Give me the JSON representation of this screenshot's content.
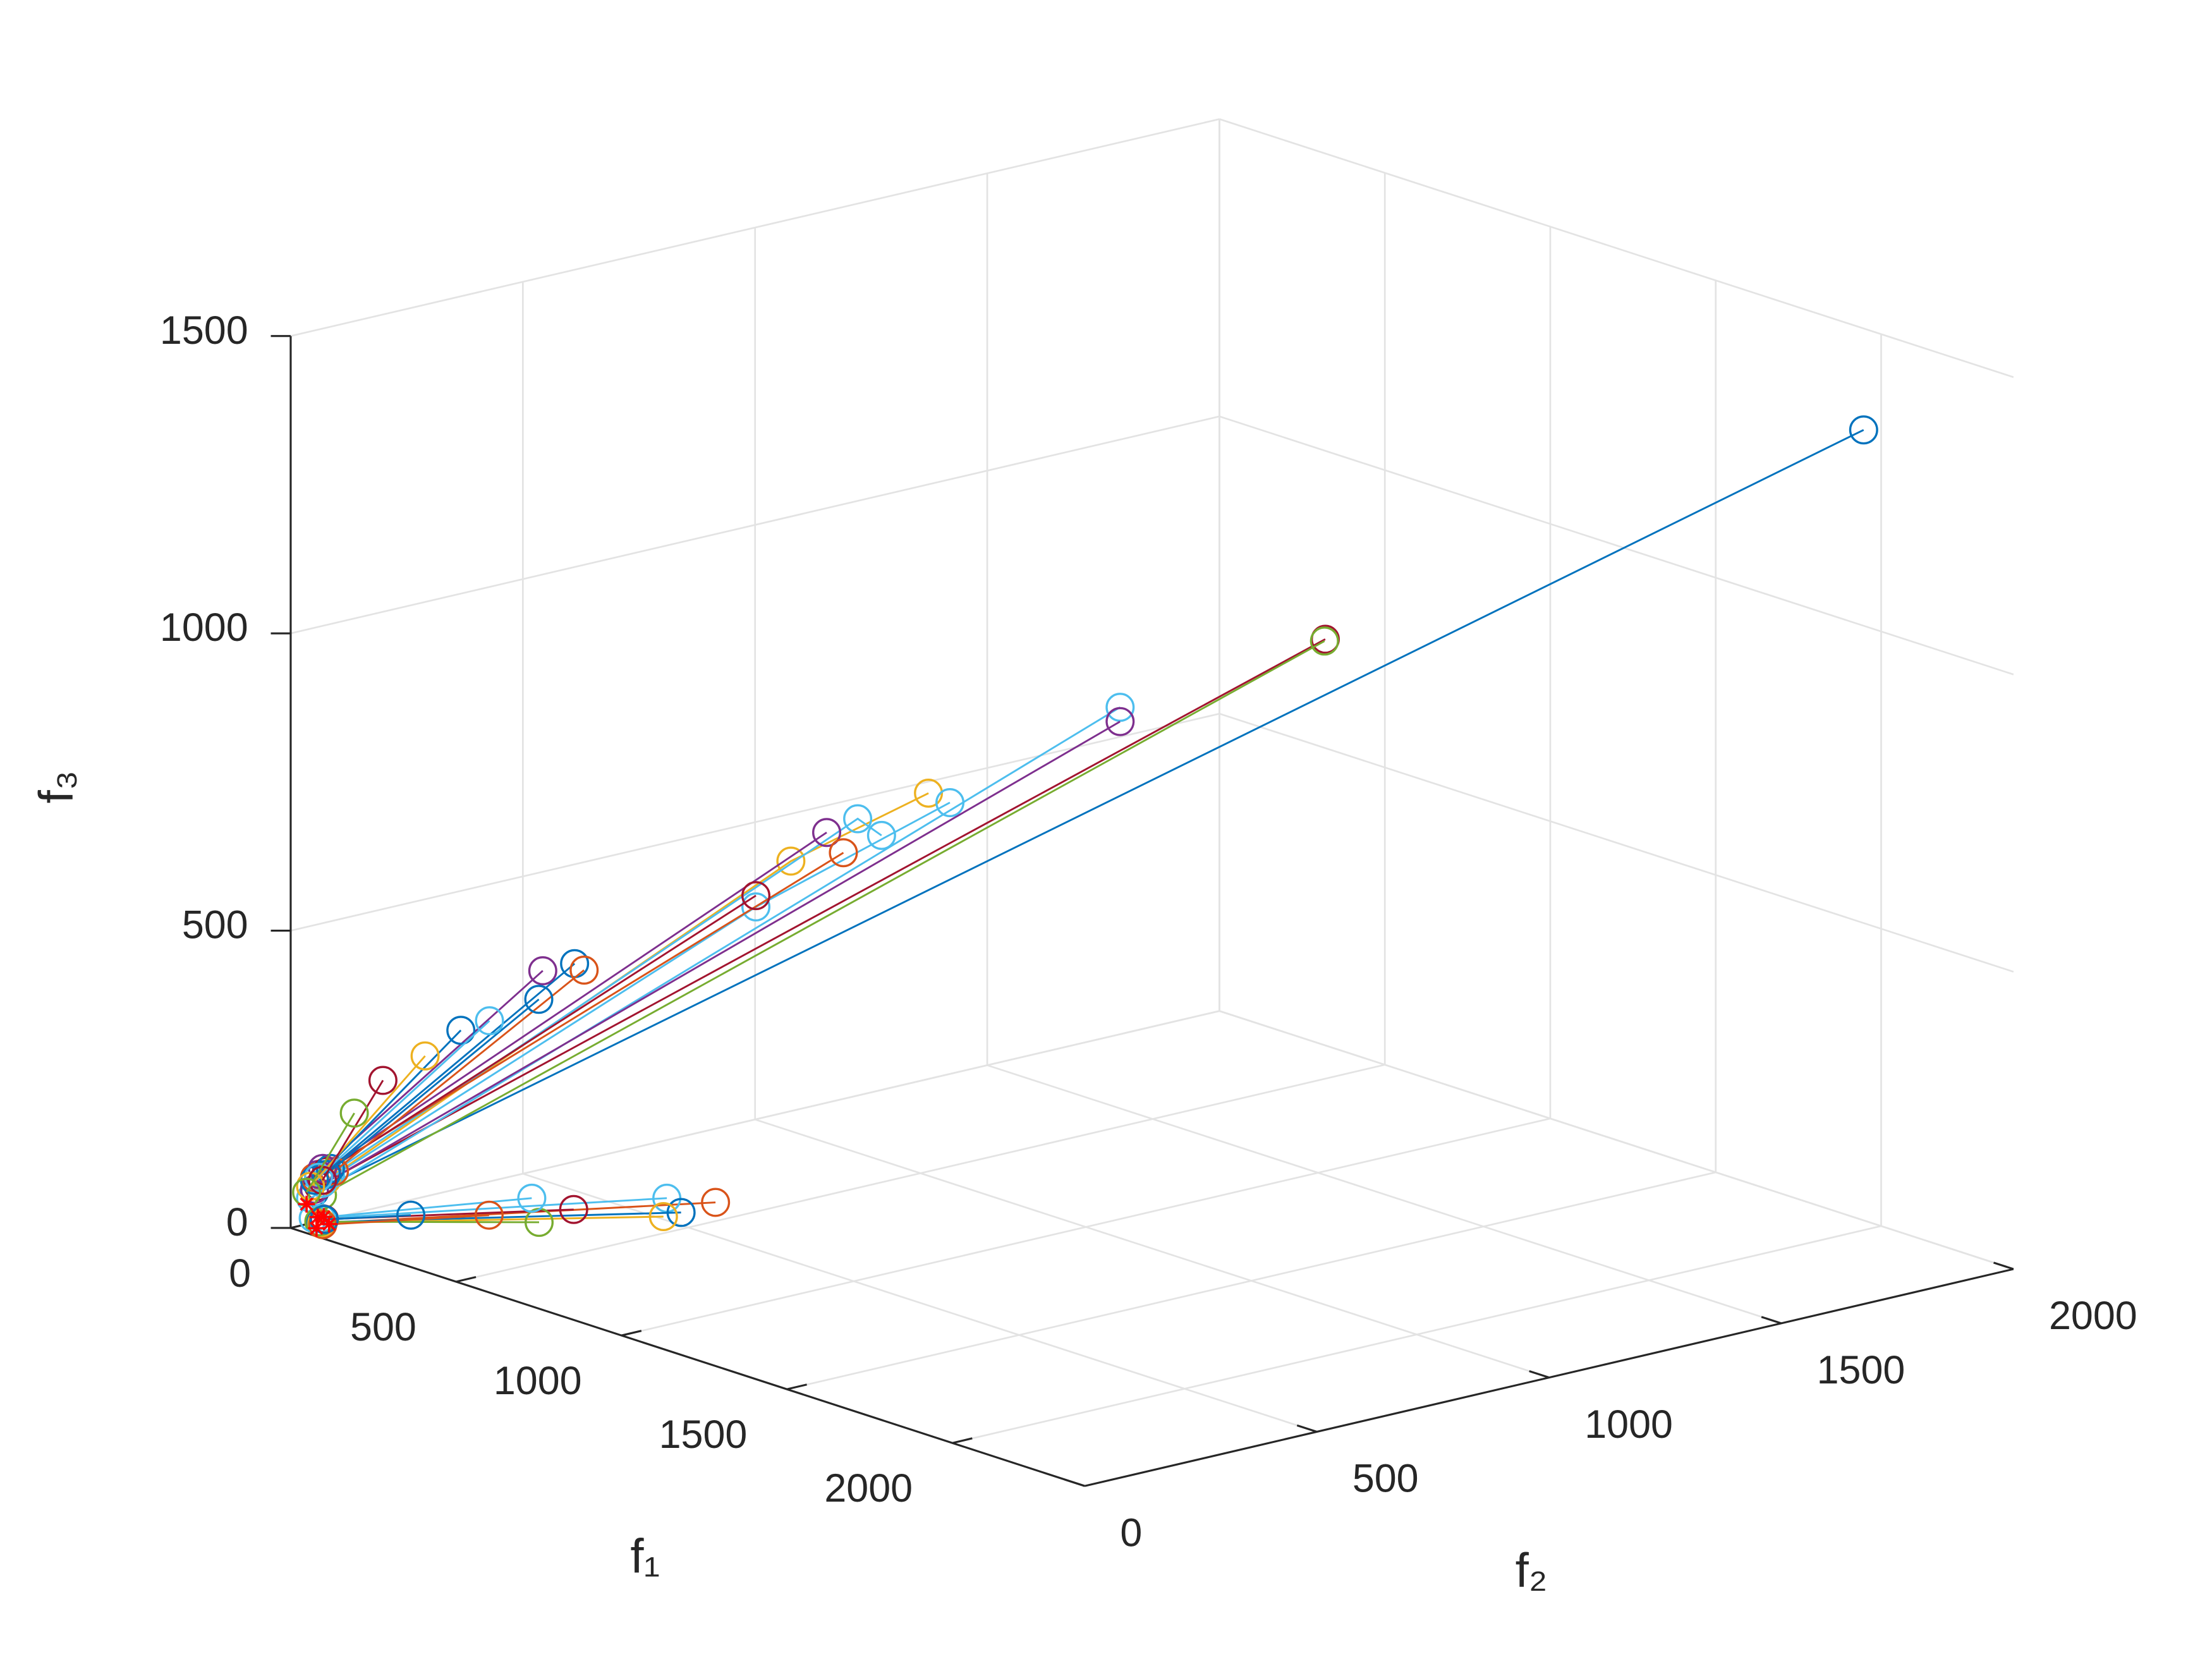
{
  "chart_data": {
    "type": "line3d",
    "xlabel": "f₁",
    "ylabel": "f₂",
    "zlabel": "f₃",
    "xlim": [
      0,
      2400
    ],
    "ylim": [
      0,
      2000
    ],
    "zlim": [
      0,
      1500
    ],
    "xticks": [
      0,
      500,
      1000,
      1500,
      2000
    ],
    "yticks": [
      0,
      500,
      1000,
      1500,
      2000
    ],
    "zticks": [
      0,
      500,
      1000,
      1500
    ],
    "grid": true,
    "series": [
      {
        "color": "#0072BD",
        "marker": "o",
        "x": [
          30,
          1978
        ],
        "y": [
          30,
          1978
        ],
        "z": [
          60,
          1339
        ]
      },
      {
        "color": "#A2142F",
        "marker": "o",
        "x": [
          35,
          1301
        ],
        "y": [
          35,
          1301
        ],
        "z": [
          70,
          988
        ]
      },
      {
        "color": "#77AC30",
        "marker": "o",
        "x": [
          40,
          1300
        ],
        "y": [
          40,
          1300
        ],
        "z": [
          55,
          985
        ]
      },
      {
        "color": "#4DBEEE",
        "marker": "o",
        "x": [
          25,
          1043
        ],
        "y": [
          25,
          1043
        ],
        "z": [
          50,
          874
        ]
      },
      {
        "color": "#7E2F8E",
        "marker": "o",
        "x": [
          30,
          1043
        ],
        "y": [
          30,
          1043
        ],
        "z": [
          65,
          850
        ]
      },
      {
        "color": "#EDB120",
        "marker": "o",
        "x": [
          45,
          629,
          802
        ],
        "y": [
          45,
          629,
          802
        ],
        "z": [
          80,
          616,
          730
        ]
      },
      {
        "color": "#4DBEEE",
        "marker": "o",
        "x": [
          40,
          585,
          829
        ],
        "y": [
          40,
          585,
          829
        ],
        "z": [
          75,
          539,
          714
        ]
      },
      {
        "color": "#4DBEEE",
        "marker": "o",
        "x": [
          50,
          713,
          743
        ],
        "y": [
          50,
          713,
          743
        ],
        "z": [
          90,
          687,
          659
        ]
      },
      {
        "color": "#7E2F8E",
        "marker": "o",
        "x": [
          35,
          674
        ],
        "y": [
          35,
          674
        ],
        "z": [
          90,
          664
        ]
      },
      {
        "color": "#D95319",
        "marker": "o",
        "x": [
          30,
          695
        ],
        "y": [
          30,
          695
        ],
        "z": [
          85,
          630
        ]
      },
      {
        "color": "#A2142F",
        "marker": "o",
        "x": [
          45,
          585
        ],
        "y": [
          45,
          585
        ],
        "z": [
          95,
          558
        ]
      },
      {
        "color": "#0072BD",
        "marker": "o",
        "x": [
          50,
          357
        ],
        "y": [
          50,
          357
        ],
        "z": [
          100,
          444
        ]
      },
      {
        "color": "#D95319",
        "marker": "o",
        "x": [
          55,
          369
        ],
        "y": [
          55,
          369
        ],
        "z": [
          95,
          433
        ]
      },
      {
        "color": "#7E2F8E",
        "marker": "o",
        "x": [
          40,
          317
        ],
        "y": [
          40,
          317
        ],
        "z": [
          100,
          432
        ]
      },
      {
        "color": "#0072BD",
        "marker": "o",
        "x": [
          45,
          312
        ],
        "y": [
          45,
          312
        ],
        "z": [
          90,
          384
        ]
      },
      {
        "color": "#0072BD",
        "marker": "o",
        "x": [
          30,
          214
        ],
        "y": [
          30,
          214
        ],
        "z": [
          80,
          332
        ]
      },
      {
        "color": "#4DBEEE",
        "marker": "o",
        "x": [
          35,
          250
        ],
        "y": [
          35,
          250
        ],
        "z": [
          85,
          348
        ]
      },
      {
        "color": "#EDB120",
        "marker": "o",
        "x": [
          25,
          169
        ],
        "y": [
          25,
          169
        ],
        "z": [
          70,
          289
        ]
      },
      {
        "color": "#A2142F",
        "marker": "o",
        "x": [
          40,
          116
        ],
        "y": [
          40,
          116
        ],
        "z": [
          80,
          248
        ]
      },
      {
        "color": "#77AC30",
        "marker": "o",
        "x": [
          20,
          80
        ],
        "y": [
          20,
          80
        ],
        "z": [
          60,
          193
        ]
      },
      {
        "color": "#D95319",
        "marker": "o",
        "x": [
          60,
          463
        ],
        "y": [
          20,
          585
        ],
        "z": [
          15,
          20
        ]
      },
      {
        "color": "#4DBEEE",
        "marker": "o",
        "x": [
          50,
          379
        ],
        "y": [
          30,
          540
        ],
        "z": [
          20,
          20
        ]
      },
      {
        "color": "#0072BD",
        "marker": "o",
        "x": [
          55,
          474
        ],
        "y": [
          25,
          503
        ],
        "z": [
          15,
          20
        ]
      },
      {
        "color": "#EDB120",
        "marker": "o",
        "x": [
          45,
          474
        ],
        "y": [
          35,
          465
        ],
        "z": [
          10,
          20
        ]
      },
      {
        "color": "#A2142F",
        "marker": "o",
        "x": [
          60,
          322
        ],
        "y": [
          30,
          380
        ],
        "z": [
          20,
          20
        ]
      },
      {
        "color": "#77AC30",
        "marker": "o",
        "x": [
          50,
          348
        ],
        "y": [
          25,
          287
        ],
        "z": [
          15,
          20
        ]
      },
      {
        "color": "#4DBEEE",
        "marker": "o",
        "x": [
          40,
          208
        ],
        "y": [
          20,
          371
        ],
        "z": [
          20,
          20
        ]
      },
      {
        "color": "#D95319",
        "marker": "o",
        "x": [
          55,
          246
        ],
        "y": [
          30,
          252
        ],
        "z": [
          10,
          20
        ]
      },
      {
        "color": "#0072BD",
        "marker": "o",
        "x": [
          45,
          147
        ],
        "y": [
          40,
          154
        ],
        "z": [
          15,
          20
        ]
      },
      {
        "color": "#FF0000",
        "marker": "*",
        "linestyle": "none",
        "x": [
          20,
          40,
          60,
          30,
          50
        ],
        "y": [
          20,
          30,
          40,
          50,
          20
        ],
        "z": [
          40,
          20,
          10,
          15,
          5
        ]
      }
    ]
  }
}
